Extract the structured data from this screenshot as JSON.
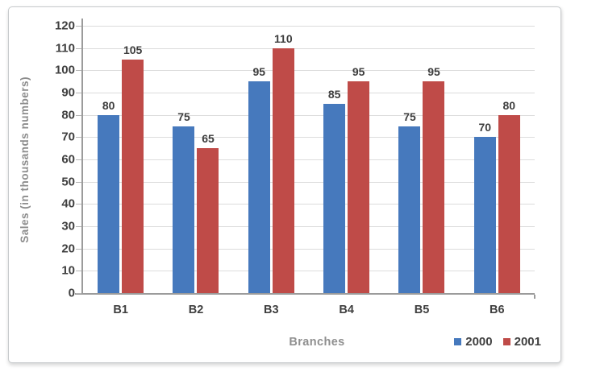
{
  "chart_data": {
    "type": "bar",
    "categories": [
      "B1",
      "B2",
      "B3",
      "B4",
      "B5",
      "B6"
    ],
    "series": [
      {
        "name": "2000",
        "color": "#4679bd",
        "values": [
          80,
          75,
          95,
          85,
          75,
          70
        ]
      },
      {
        "name": "2001",
        "color": "#bf4b48",
        "values": [
          105,
          65,
          110,
          95,
          95,
          80
        ]
      }
    ],
    "xlabel": "Branches",
    "ylabel": "Sales (in thousands numbers)",
    "ylim": [
      0,
      120
    ],
    "ytick_step": 10,
    "grid": true,
    "value_labels": true,
    "legend_position": "bottom-right",
    "text_color": "#3f3f3f",
    "axis_title_color": "#8d8d8d"
  }
}
